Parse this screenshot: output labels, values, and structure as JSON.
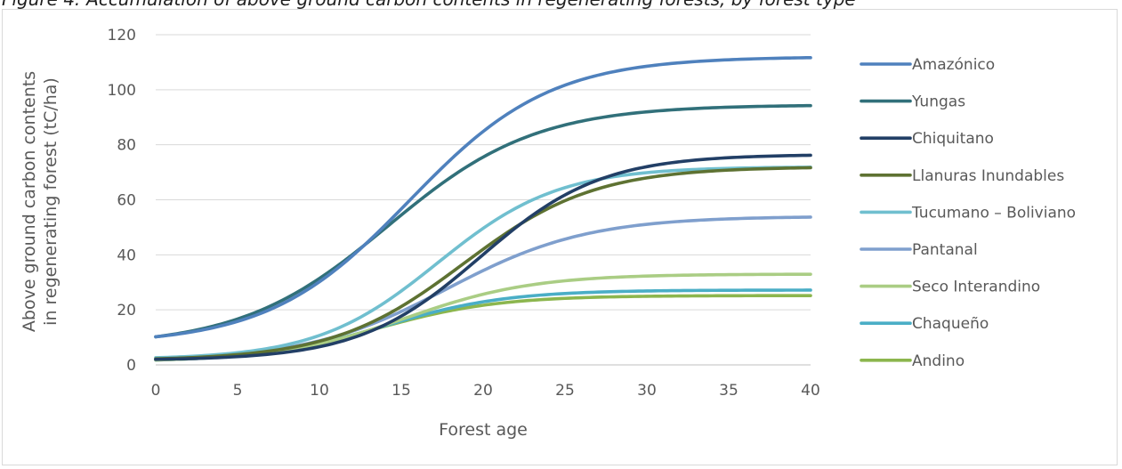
{
  "caption": "Figure 4: Accumulation of above ground carbon contents in regenerating forests, by forest type",
  "chart_data": {
    "type": "line",
    "title": "",
    "xlabel": "Forest age",
    "ylabel": "Above ground carbon contents in regenerating forest (tC/ha)",
    "xlim": [
      0,
      40
    ],
    "ylim": [
      0,
      120
    ],
    "x_ticks": [
      0,
      5,
      10,
      15,
      20,
      25,
      30,
      35,
      40
    ],
    "y_ticks": [
      0,
      20,
      40,
      60,
      80,
      100,
      120
    ],
    "grid": "horizontal",
    "legend": "right",
    "series": [
      {
        "name": "Amazónico",
        "color": "#4f81bd",
        "model": {
          "type": "logistic",
          "start": 10.2,
          "max": 112,
          "mid": 15.5,
          "scale": 4.3
        }
      },
      {
        "name": "Yungas",
        "color": "#31707a",
        "model": {
          "type": "logistic",
          "start": 10.2,
          "max": 94.5,
          "mid": 14.2,
          "scale": 4.5
        }
      },
      {
        "name": "Chiquitano",
        "color": "#223f66",
        "model": {
          "type": "logistic",
          "start": 2.0,
          "max": 76.5,
          "mid": 19.8,
          "scale": 3.7
        }
      },
      {
        "name": "Llanuras Inundables",
        "color": "#5e7232",
        "model": {
          "type": "logistic",
          "start": 2.2,
          "max": 72,
          "mid": 18.8,
          "scale": 4.0
        }
      },
      {
        "name": "Tucumano – Boliviano",
        "color": "#70bfcf",
        "model": {
          "type": "logistic",
          "start": 2.6,
          "max": 72,
          "mid": 17.2,
          "scale": 3.7
        }
      },
      {
        "name": "Pantanal",
        "color": "#7f9fcd",
        "model": {
          "type": "logistic",
          "start": 2.2,
          "max": 54,
          "mid": 17.8,
          "scale": 4.3
        }
      },
      {
        "name": "Seco Interandino",
        "color": "#aacd84",
        "model": {
          "type": "logistic",
          "start": 1.8,
          "max": 33,
          "mid": 15.3,
          "scale": 3.9
        }
      },
      {
        "name": "Chaqueño",
        "color": "#4aaec6",
        "model": {
          "type": "logistic",
          "start": 1.8,
          "max": 27.2,
          "mid": 14.0,
          "scale": 3.7
        }
      },
      {
        "name": "Andino",
        "color": "#8cb64e",
        "model": {
          "type": "logistic",
          "start": 1.8,
          "max": 25.2,
          "mid": 13.5,
          "scale": 3.7
        }
      }
    ]
  }
}
